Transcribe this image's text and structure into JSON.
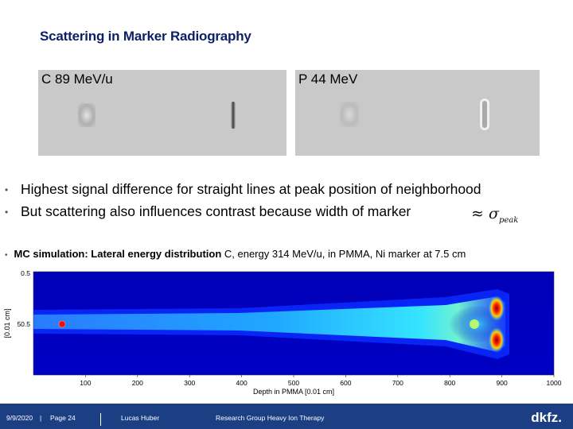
{
  "slide": {
    "title": "Scattering in Marker Radiography"
  },
  "panels": {
    "left_label": "C 89 MeV/u",
    "right_label": "P 44 MeV"
  },
  "bullets": [
    "Highest signal difference for straight lines at peak position of neighborhood",
    "But scattering also influences contrast because width of marker"
  ],
  "formula": {
    "approx": "≈",
    "sigma": "σ",
    "subscript": "peak"
  },
  "mc": {
    "bold": "MC simulation: Lateral energy distribution",
    "rest": " C, energy 314 MeV/u, in PMMA, Ni marker at 7.5 cm"
  },
  "chart_data": {
    "type": "heatmap",
    "xlabel": "Depth in PMMA [0.01 cm]",
    "ylabel": "[0.01 cm]",
    "x_ticks": [
      "100",
      "200",
      "300",
      "400",
      "500",
      "600",
      "700",
      "800",
      "900",
      "1000"
    ],
    "y_ticks": [
      "0.5",
      "50.5"
    ],
    "colormap": "jet",
    "features": {
      "marker_position_x": 75,
      "bragg_peak_x": 905
    }
  },
  "footer": {
    "date": "9/9/2020",
    "page": "Page 24",
    "author": "Lucas Huber",
    "group": "Research Group Heavy Ion Therapy",
    "logo": "dkfz."
  },
  "colors": {
    "title": "#0a1f66",
    "footer_bg": "#1c3f84"
  }
}
